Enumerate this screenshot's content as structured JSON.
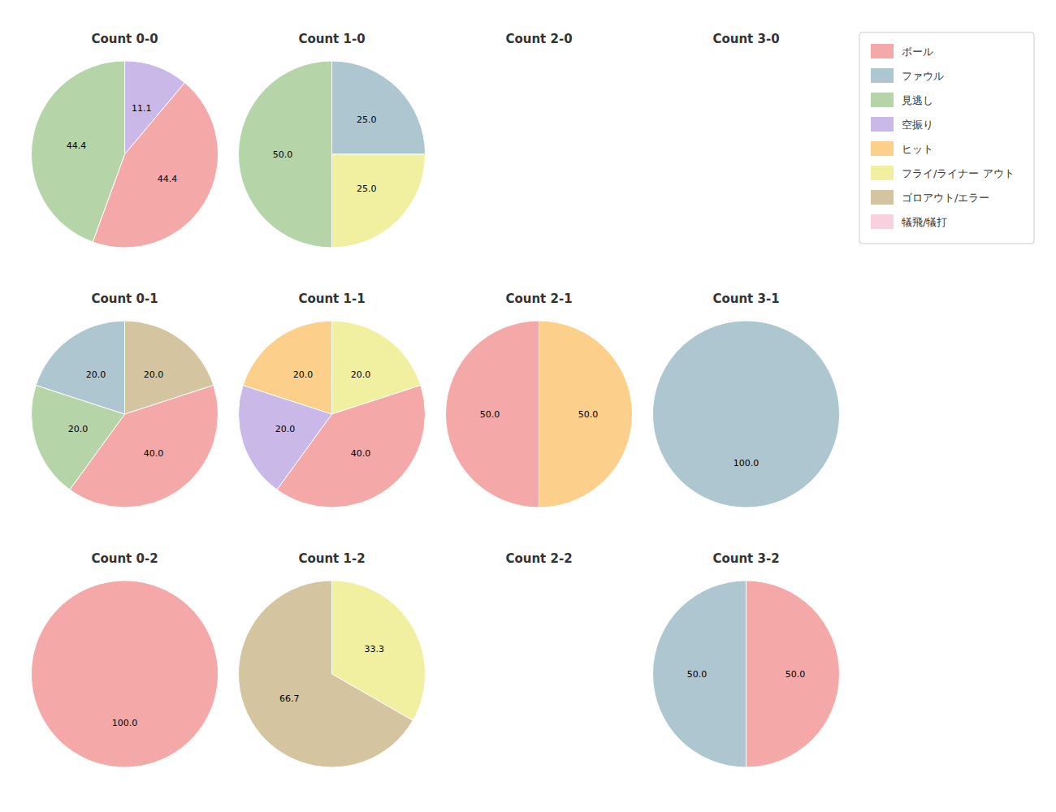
{
  "chart_data": [
    {
      "type": "pie",
      "title": "Count 0-0",
      "categories": [
        "空振り",
        "ボール",
        "見逃し"
      ],
      "values": [
        11.1,
        44.4,
        44.4
      ],
      "value_labels": [
        "11.1",
        "44.4",
        "44.4"
      ],
      "colors": [
        "#C9B8E8",
        "#F4A9A8",
        "#B5D5A8"
      ],
      "data_labels": true
    },
    {
      "type": "pie",
      "title": "Count 1-0",
      "categories": [
        "ファウル",
        "フライ/ライナー アウト",
        "見逃し"
      ],
      "values": [
        25.0,
        25.0,
        50.0
      ],
      "value_labels": [
        "25.0",
        "25.0",
        "50.0"
      ],
      "colors": [
        "#AEC6CF",
        "#F0F0A0",
        "#B5D5A8"
      ],
      "data_labels": true
    },
    {
      "type": "pie",
      "title": "Count 2-0",
      "categories": [],
      "values": []
    },
    {
      "type": "pie",
      "title": "Count 3-0",
      "categories": [],
      "values": []
    },
    {
      "type": "pie",
      "title": "Count 0-1",
      "categories": [
        "ゴロアウト/エラー",
        "ボール",
        "見逃し",
        "ファウル"
      ],
      "values": [
        20.0,
        40.0,
        20.0,
        20.0
      ],
      "value_labels": [
        "20.0",
        "40.0",
        "20.0",
        "20.0"
      ],
      "colors": [
        "#D4C4A0",
        "#F4A9A8",
        "#B5D5A8",
        "#AEC6CF"
      ],
      "data_labels": true
    },
    {
      "type": "pie",
      "title": "Count 1-1",
      "categories": [
        "フライ/ライナー アウト",
        "ボール",
        "空振り",
        "ヒット"
      ],
      "values": [
        20.0,
        40.0,
        20.0,
        20.0
      ],
      "value_labels": [
        "20.0",
        "40.0",
        "20.0",
        "20.0"
      ],
      "colors": [
        "#F0F0A0",
        "#F4A9A8",
        "#C9B8E8",
        "#FCCF8A"
      ],
      "data_labels": true
    },
    {
      "type": "pie",
      "title": "Count 2-1",
      "categories": [
        "ヒット",
        "ボール"
      ],
      "values": [
        50.0,
        50.0
      ],
      "value_labels": [
        "50.0",
        "50.0"
      ],
      "colors": [
        "#FCCF8A",
        "#F4A9A8"
      ],
      "data_labels": true
    },
    {
      "type": "pie",
      "title": "Count 3-1",
      "categories": [
        "ファウル"
      ],
      "values": [
        100.0
      ],
      "value_labels": [
        "100.0"
      ],
      "colors": [
        "#AEC6CF"
      ],
      "data_labels": true
    },
    {
      "type": "pie",
      "title": "Count 0-2",
      "categories": [
        "ボール"
      ],
      "values": [
        100.0
      ],
      "value_labels": [
        "100.0"
      ],
      "colors": [
        "#F4A9A8"
      ],
      "data_labels": true
    },
    {
      "type": "pie",
      "title": "Count 1-2",
      "categories": [
        "フライ/ライナー アウト",
        "ゴロアウト/エラー"
      ],
      "values": [
        33.3,
        66.7
      ],
      "value_labels": [
        "33.3",
        "66.7"
      ],
      "colors": [
        "#F0F0A0",
        "#D4C4A0"
      ],
      "data_labels": true
    },
    {
      "type": "pie",
      "title": "Count 2-2",
      "categories": [],
      "values": []
    },
    {
      "type": "pie",
      "title": "Count 3-2",
      "categories": [
        "ボール",
        "ファウル"
      ],
      "values": [
        50.0,
        50.0
      ],
      "value_labels": [
        "50.0",
        "50.0"
      ],
      "colors": [
        "#F4A9A8",
        "#AEC6CF"
      ],
      "data_labels": true
    },
    {
      "type": "legend",
      "legend": "upper right",
      "series": [
        {
          "name": "ボール",
          "color": "#F4A9A8"
        },
        {
          "name": "ファウル",
          "color": "#AEC6CF"
        },
        {
          "name": "見逃し",
          "color": "#B5D5A8"
        },
        {
          "name": "空振り",
          "color": "#C9B8E8"
        },
        {
          "name": "ヒット",
          "color": "#FCCF8A"
        },
        {
          "name": "フライ/ライナー アウト",
          "color": "#F0F0A0"
        },
        {
          "name": "ゴロアウト/エラー",
          "color": "#D4C4A0"
        },
        {
          "name": "犠飛/犠打",
          "color": "#F9D0E0"
        }
      ]
    }
  ]
}
